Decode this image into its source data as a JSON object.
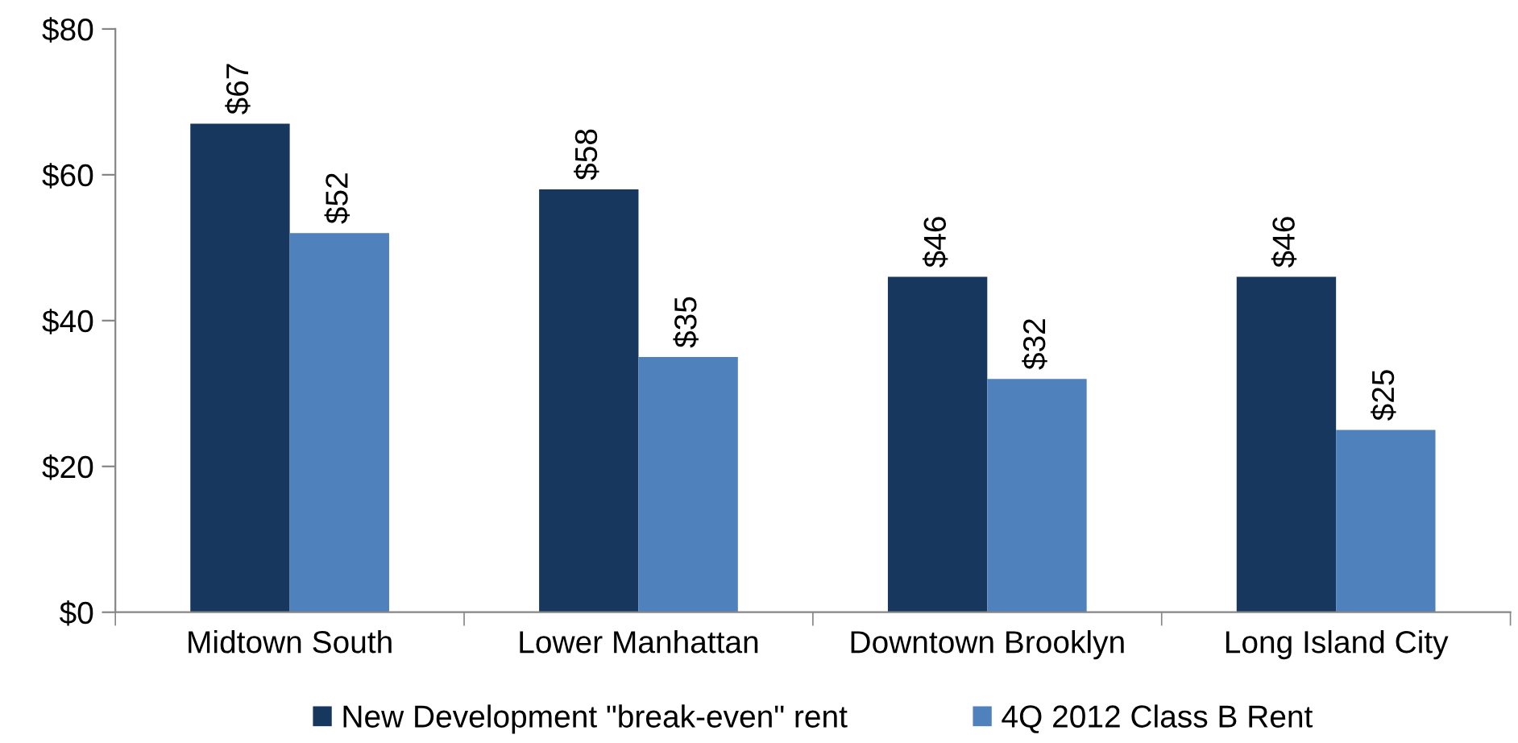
{
  "chart_data": {
    "type": "bar",
    "categories": [
      "Midtown South",
      "Lower Manhattan",
      "Downtown Brooklyn",
      "Long Island City"
    ],
    "series": [
      {
        "name": "New Development \"break-even\" rent",
        "color": "#17375e",
        "values": [
          67,
          58,
          46,
          46
        ],
        "value_labels": [
          "$67",
          "$58",
          "$46",
          "$46"
        ]
      },
      {
        "name": "4Q 2012 Class B Rent",
        "color": "#4f81bd",
        "values": [
          52,
          35,
          32,
          25
        ],
        "value_labels": [
          "$52",
          "$35",
          "$32",
          "$25"
        ]
      }
    ],
    "ylim": [
      0,
      80
    ],
    "yticks": [
      {
        "value": 0,
        "label": "$0"
      },
      {
        "value": 20,
        "label": "$20"
      },
      {
        "value": 40,
        "label": "$40"
      },
      {
        "value": 60,
        "label": "$60"
      },
      {
        "value": 80,
        "label": "$80"
      }
    ],
    "grid": false,
    "legend": "bottom"
  }
}
